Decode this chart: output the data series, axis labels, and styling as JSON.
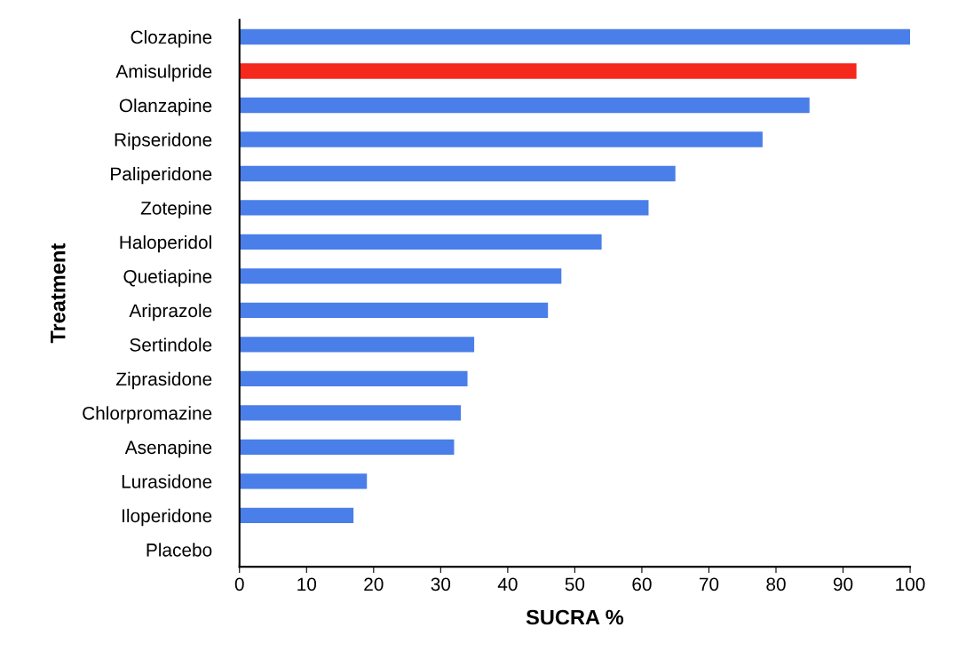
{
  "chart_data": {
    "type": "bar",
    "orientation": "horizontal",
    "xlabel": "SUCRA %",
    "ylabel": "Treatment",
    "categories": [
      "Clozapine",
      "Amisulpride",
      "Olanzapine",
      "Ripseridone",
      "Paliperidone",
      "Zotepine",
      "Haloperidol",
      "Quetiapine",
      "Ariprazole",
      "Sertindole",
      "Ziprasidone",
      "Chlorpromazine",
      "Asenapine",
      "Lurasidone",
      "Iloperidone",
      "Placebo"
    ],
    "values": [
      100,
      92,
      85,
      78,
      65,
      61,
      54,
      48,
      46,
      35,
      34,
      33,
      32,
      19,
      17,
      0
    ],
    "colors": [
      "#4a7ee8",
      "#f5281c",
      "#4a7ee8",
      "#4a7ee8",
      "#4a7ee8",
      "#4a7ee8",
      "#4a7ee8",
      "#4a7ee8",
      "#4a7ee8",
      "#4a7ee8",
      "#4a7ee8",
      "#4a7ee8",
      "#4a7ee8",
      "#4a7ee8",
      "#4a7ee8",
      "#4a7ee8"
    ],
    "xlim": [
      0,
      100
    ],
    "xticks": [
      0,
      10,
      20,
      30,
      40,
      50,
      60,
      70,
      80,
      90,
      100
    ],
    "grid": false
  }
}
